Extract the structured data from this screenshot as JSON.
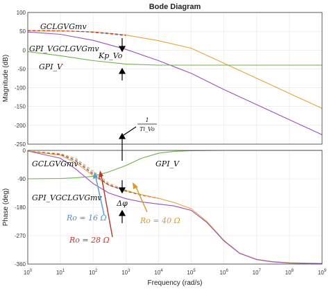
{
  "chart_data": [
    {
      "type": "line",
      "title": "Bode Diagram",
      "xlabel": "",
      "ylabel": "Magnitude (dB)",
      "xscale": "log",
      "xlim": [
        1,
        1000000000
      ],
      "ylim": [
        -250,
        100
      ],
      "yticks": [
        100,
        50,
        0,
        -50,
        -100,
        -150,
        -200,
        -250
      ],
      "grid": true,
      "series": [
        {
          "name": "GCLGVGmv",
          "color": "#e8a23c",
          "dashed": false,
          "x": [
            1,
            10,
            100,
            1000,
            10000,
            100000,
            1000000,
            10000000,
            100000000,
            1000000000
          ],
          "y": [
            52,
            51,
            48,
            40,
            25,
            5,
            -35,
            -75,
            -115,
            -155
          ]
        },
        {
          "name": "GPI_VGCLGVGmv",
          "color": "#9a4fc0",
          "dashed": false,
          "x": [
            1,
            10,
            100,
            1000,
            10000,
            100000,
            1000000,
            10000000,
            100000000,
            1000000000
          ],
          "y": [
            48,
            42,
            26,
            2,
            -28,
            -62,
            -105,
            -145,
            -185,
            -225
          ]
        },
        {
          "name": "GPI_V",
          "color": "#6cb24a",
          "dashed": false,
          "x": [
            1,
            10,
            100,
            1000,
            10000,
            100000,
            1000000,
            10000000,
            100000000,
            1000000000
          ],
          "y": [
            -4,
            -15,
            -28,
            -37,
            -40,
            -40,
            -40,
            -40,
            -40,
            -40
          ]
        },
        {
          "name": "",
          "color": "#5b9bd5",
          "dashed": true,
          "x": [
            1,
            10,
            30,
            100,
            300,
            1000
          ],
          "y": [
            52,
            51,
            50,
            47,
            43,
            38
          ]
        },
        {
          "name": "",
          "color": "#c0392b",
          "dashed": true,
          "x": [
            1,
            10,
            30,
            100,
            300,
            1000
          ],
          "y": [
            52,
            51,
            50,
            48,
            45,
            40
          ]
        }
      ]
    },
    {
      "type": "line",
      "title": "",
      "xlabel": "Frequency  (rad/s)",
      "ylabel": "Phase (deg)",
      "xscale": "log",
      "xlim": [
        1,
        1000000000
      ],
      "ylim": [
        -360,
        0
      ],
      "yticks": [
        0,
        -90,
        -180,
        -270,
        -360
      ],
      "xticks": [
        1,
        10,
        100,
        1000,
        10000,
        100000,
        1000000,
        10000000,
        100000000,
        1000000000
      ],
      "grid": true,
      "series": [
        {
          "name": "GCLGVGmv",
          "color": "#e8a23c",
          "dashed": false,
          "x": [
            1,
            10,
            30,
            100,
            300,
            1000,
            3000,
            10000,
            30000,
            100000,
            300000,
            1000000,
            3000000,
            10000000,
            30000000,
            100000000,
            1000000000
          ],
          "y": [
            -2,
            -15,
            -40,
            -80,
            -110,
            -128,
            -140,
            -152,
            -165,
            -185,
            -225,
            -285,
            -325,
            -345,
            -352,
            -356,
            -358
          ]
        },
        {
          "name": "GPI_VGCLGVGmv",
          "color": "#9a4fc0",
          "dashed": false,
          "x": [
            1,
            10,
            30,
            100,
            300,
            1000,
            3000,
            10000,
            30000,
            100000,
            300000,
            1000000,
            3000000,
            10000000,
            30000000,
            100000000,
            1000000000
          ],
          "y": [
            -2,
            -25,
            -60,
            -105,
            -135,
            -153,
            -163,
            -170,
            -176,
            -190,
            -228,
            -287,
            -326,
            -346,
            -353,
            -357,
            -359
          ]
        },
        {
          "name": "GPI_V",
          "color": "#6cb24a",
          "dashed": false,
          "x": [
            1,
            10,
            30,
            100,
            300,
            1000,
            3000,
            10000,
            30000,
            100000,
            1000000,
            1000000000
          ],
          "y": [
            -90,
            -89,
            -87,
            -82,
            -68,
            -48,
            -25,
            -9,
            -3,
            -1,
            0,
            0
          ]
        },
        {
          "name": "Ro = 16 Ω",
          "color": "#5b9bd5",
          "dashed": true,
          "x": [
            1,
            10,
            30,
            100,
            300,
            1000,
            3000,
            10000
          ],
          "y": [
            -2,
            -12,
            -30,
            -72,
            -108,
            -128,
            -142,
            -152
          ]
        },
        {
          "name": "Ro = 28 Ω",
          "color": "#c0392b",
          "dashed": true,
          "x": [
            1,
            10,
            30,
            100,
            300,
            1000,
            3000,
            10000
          ],
          "y": [
            -2,
            -13,
            -34,
            -76,
            -110,
            -129,
            -142,
            -152
          ]
        },
        {
          "name": "Ro = 40 Ω",
          "color": "#e8a23c",
          "dashed": true,
          "x": [
            1,
            10,
            30,
            100,
            300,
            1000,
            3000,
            10000
          ],
          "y": [
            -2,
            -10,
            -26,
            -66,
            -104,
            -126,
            -141,
            -152
          ]
        }
      ]
    }
  ],
  "annotations": {
    "mag_gcl": "GCLGVGmv",
    "mag_gpi_gcl": "GPI_VGCLGVGmv",
    "kp": "Kp_Vo",
    "mag_gpi": "GPI_V",
    "ti_num": "1",
    "ti_den": "Ti_Vo",
    "ph_gcl": "GCLGVGmv",
    "ph_gpi": "GPI_V",
    "ph_gpi_gcl": "GPI_VGCLGVGmv",
    "dphi": "Δφ",
    "ro16": "Ro = 16 Ω",
    "ro28": "Ro = 28 Ω",
    "ro40": "Ro = 40 Ω"
  }
}
